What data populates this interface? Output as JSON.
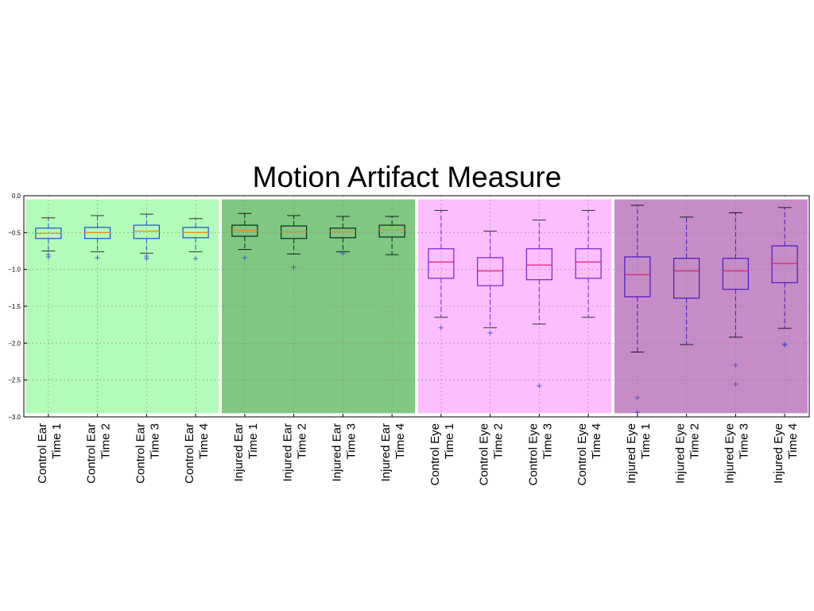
{
  "chart_data": {
    "type": "box",
    "title": "Motion Artifact Measure",
    "xlabel": "",
    "ylabel": "",
    "ylim": [
      -3.0,
      0.0
    ],
    "yticks": [
      "0.0",
      "−0.5",
      "−1.0",
      "−1.5",
      "−2.0",
      "−2.5",
      "−3.0"
    ],
    "ytick_values": [
      0.0,
      -0.5,
      -1.0,
      -1.5,
      -2.0,
      -2.5,
      -3.0
    ],
    "grid": true,
    "groups": [
      {
        "name": "Control Ear",
        "color": "#b3fbb8"
      },
      {
        "name": "Injured Ear",
        "color": "#80c77f"
      },
      {
        "name": "Control Eye",
        "color": "#fcbefe"
      },
      {
        "name": "Injured Eye",
        "color": "#c68cc7"
      }
    ],
    "categories": [
      {
        "line1": "Control Ear",
        "line2": "Time 1",
        "group": 0,
        "whislo": -0.75,
        "q1": -0.58,
        "med": -0.51,
        "q3": -0.44,
        "whishi": -0.3,
        "fliers": [
          -0.8,
          -0.83
        ]
      },
      {
        "line1": "Control Ear",
        "line2": "Time 2",
        "group": 0,
        "whislo": -0.76,
        "q1": -0.58,
        "med": -0.5,
        "q3": -0.43,
        "whishi": -0.27,
        "fliers": [
          -0.84
        ]
      },
      {
        "line1": "Control Ear",
        "line2": "Time 3",
        "group": 0,
        "whislo": -0.78,
        "q1": -0.58,
        "med": -0.48,
        "q3": -0.4,
        "whishi": -0.25,
        "fliers": [
          -0.82,
          -0.85
        ]
      },
      {
        "line1": "Control Ear",
        "line2": "Time 4",
        "group": 0,
        "whislo": -0.76,
        "q1": -0.57,
        "med": -0.5,
        "q3": -0.43,
        "whishi": -0.31,
        "fliers": [
          -0.85
        ]
      },
      {
        "line1": "Injured Ear",
        "line2": "Time 1",
        "group": 1,
        "whislo": -0.73,
        "q1": -0.55,
        "med": -0.47,
        "q3": -0.4,
        "whishi": -0.24,
        "fliers": [
          -0.84
        ]
      },
      {
        "line1": "Injured Ear",
        "line2": "Time 2",
        "group": 1,
        "whislo": -0.79,
        "q1": -0.58,
        "med": -0.49,
        "q3": -0.41,
        "whishi": -0.27,
        "fliers": [
          -0.97
        ]
      },
      {
        "line1": "Injured Ear",
        "line2": "Time 3",
        "group": 1,
        "whislo": -0.76,
        "q1": -0.57,
        "med": -0.49,
        "q3": -0.44,
        "whishi": -0.28,
        "fliers": [
          -0.78
        ]
      },
      {
        "line1": "Injured Ear",
        "line2": "Time 4",
        "group": 1,
        "whislo": -0.8,
        "q1": -0.56,
        "med": -0.46,
        "q3": -0.4,
        "whishi": -0.28,
        "fliers": []
      },
      {
        "line1": "Control Eye",
        "line2": "Time 1",
        "group": 2,
        "whislo": -1.65,
        "q1": -1.12,
        "med": -0.9,
        "q3": -0.72,
        "whishi": -0.2,
        "fliers": [
          -1.79
        ]
      },
      {
        "line1": "Control Eye",
        "line2": "Time 2",
        "group": 2,
        "whislo": -1.79,
        "q1": -1.22,
        "med": -1.02,
        "q3": -0.84,
        "whishi": -0.48,
        "fliers": [
          -1.86
        ]
      },
      {
        "line1": "Control Eye",
        "line2": "Time 3",
        "group": 2,
        "whislo": -1.74,
        "q1": -1.14,
        "med": -0.94,
        "q3": -0.72,
        "whishi": -0.33,
        "fliers": [
          -2.58
        ]
      },
      {
        "line1": "Control Eye",
        "line2": "Time 4",
        "group": 2,
        "whislo": -1.65,
        "q1": -1.12,
        "med": -0.9,
        "q3": -0.72,
        "whishi": -0.2,
        "fliers": []
      },
      {
        "line1": "Injured Eye",
        "line2": "Time 1",
        "group": 3,
        "whislo": -2.12,
        "q1": -1.37,
        "med": -1.07,
        "q3": -0.83,
        "whishi": -0.13,
        "fliers": [
          -2.74,
          -2.94
        ]
      },
      {
        "line1": "Injured Eye",
        "line2": "Time 2",
        "group": 3,
        "whislo": -2.02,
        "q1": -1.39,
        "med": -1.02,
        "q3": -0.85,
        "whishi": -0.29,
        "fliers": []
      },
      {
        "line1": "Injured Eye",
        "line2": "Time 3",
        "group": 3,
        "whislo": -1.92,
        "q1": -1.27,
        "med": -1.02,
        "q3": -0.85,
        "whishi": -0.23,
        "fliers": [
          -2.3,
          -2.56
        ]
      },
      {
        "line1": "Injured Eye",
        "line2": "Time 4",
        "group": 3,
        "whislo": -1.8,
        "q1": -1.18,
        "med": -0.92,
        "q3": -0.68,
        "whishi": -0.16,
        "fliers": [
          -2.01,
          -2.03
        ]
      }
    ],
    "colors": {
      "ear_box": "#1f4fcf",
      "eye_box": "#7b1fd6",
      "injured_ear_box": "#0a2a20",
      "injured_eye_box": "#4a19c0",
      "median_ear": "#f08a18",
      "median_eye": "#e0206a",
      "flier": "#3a49d0",
      "grid": "#8a8a8a"
    }
  }
}
